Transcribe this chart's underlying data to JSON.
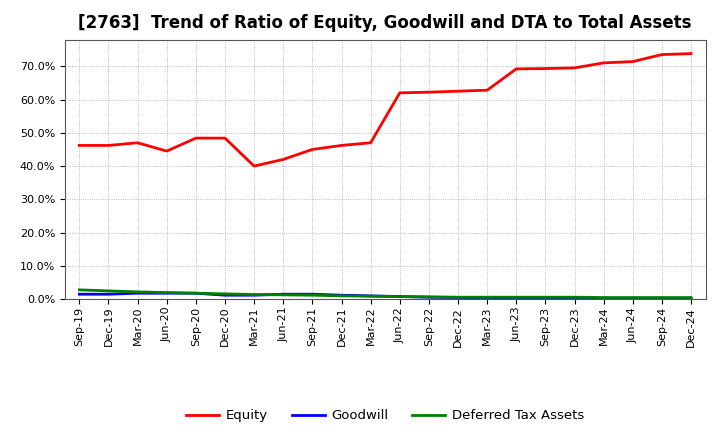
{
  "title": "[2763]  Trend of Ratio of Equity, Goodwill and DTA to Total Assets",
  "x_labels": [
    "Sep-19",
    "Dec-19",
    "Mar-20",
    "Jun-20",
    "Sep-20",
    "Dec-20",
    "Mar-21",
    "Jun-21",
    "Sep-21",
    "Dec-21",
    "Mar-22",
    "Jun-22",
    "Sep-22",
    "Dec-22",
    "Mar-23",
    "Jun-23",
    "Sep-23",
    "Dec-23",
    "Mar-24",
    "Jun-24",
    "Sep-24",
    "Dec-24"
  ],
  "equity": [
    0.462,
    0.462,
    0.47,
    0.445,
    0.484,
    0.484,
    0.4,
    0.42,
    0.45,
    0.462,
    0.47,
    0.62,
    0.622,
    0.625,
    0.628,
    0.692,
    0.693,
    0.695,
    0.71,
    0.714,
    0.735,
    0.738
  ],
  "goodwill": [
    0.015,
    0.015,
    0.018,
    0.018,
    0.018,
    0.012,
    0.012,
    0.015,
    0.015,
    0.012,
    0.01,
    0.008,
    0.006,
    0.005,
    0.004,
    0.003,
    0.003,
    0.002,
    0.002,
    0.002,
    0.002,
    0.002
  ],
  "dta": [
    0.028,
    0.025,
    0.022,
    0.02,
    0.018,
    0.016,
    0.014,
    0.013,
    0.012,
    0.01,
    0.009,
    0.008,
    0.007,
    0.006,
    0.006,
    0.006,
    0.006,
    0.006,
    0.005,
    0.005,
    0.005,
    0.005
  ],
  "equity_color": "#FF0000",
  "goodwill_color": "#0000FF",
  "dta_color": "#008000",
  "ylim": [
    0.0,
    0.78
  ],
  "yticks": [
    0.0,
    0.1,
    0.2,
    0.3,
    0.4,
    0.5,
    0.6,
    0.7
  ],
  "bg_color": "#FFFFFF",
  "plot_bg_color": "#FFFFFF",
  "grid_color": "#AAAAAA",
  "legend_labels": [
    "Equity",
    "Goodwill",
    "Deferred Tax Assets"
  ],
  "line_width": 2.0,
  "title_fontsize": 12,
  "tick_fontsize": 8,
  "legend_fontsize": 9.5
}
